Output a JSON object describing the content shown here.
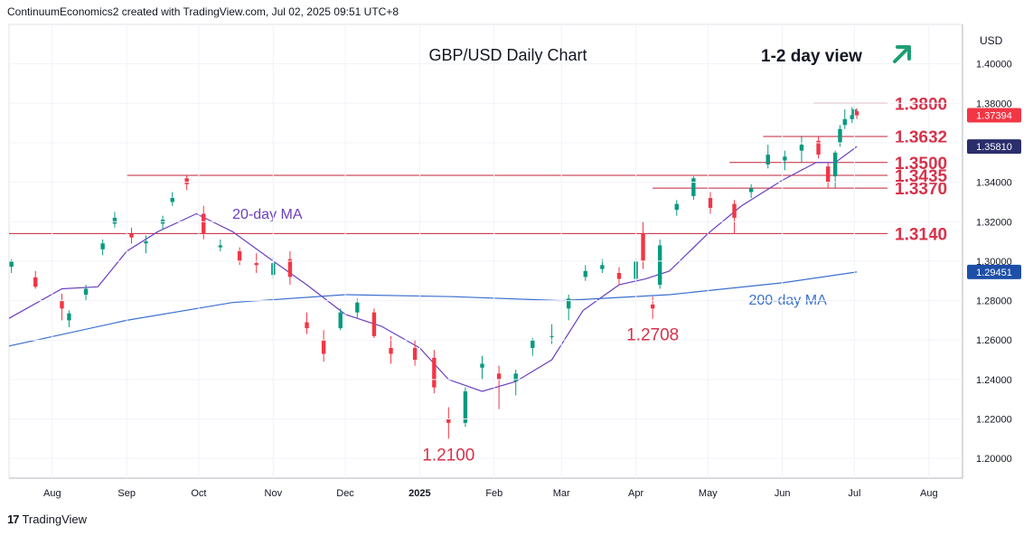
{
  "header": {
    "attribution": "ContinuumEconomics2 created with TradingView.com, Jul 02, 2025 09:51 UTC+8"
  },
  "footer": {
    "logo_text": "17",
    "brand": "TradingView"
  },
  "colors": {
    "up": "#089981",
    "down": "#f23645",
    "ma20": "#6a3fc0",
    "ma200": "#3b6fd0",
    "level": "#c2233a",
    "annotation": "#d8324a",
    "arrow": "#1e9e73",
    "price_badge": "#f23645",
    "ma20_badge": "#2a2e6b",
    "ma200_badge": "#1e4fa8"
  },
  "chart_data": {
    "type": "candlestick",
    "title": "GBP/USD Daily Chart",
    "subtitle": "1-2 day view",
    "outlook_icon": "arrow-up-right-icon",
    "currency": "USD",
    "xlabel": "",
    "ylabel": "",
    "ylim": [
      1.19,
      1.42
    ],
    "y_ticks": [
      "1.40000",
      "1.38000",
      "1.36000",
      "1.34000",
      "1.32000",
      "1.30000",
      "1.28000",
      "1.26000",
      "1.24000",
      "1.22000",
      "1.20000"
    ],
    "x_range": [
      "2024-07-14",
      "2025-08-15"
    ],
    "x_ticks": [
      {
        "label": "Aug",
        "date": "2024-08-01"
      },
      {
        "label": "Sep",
        "date": "2024-09-01"
      },
      {
        "label": "Oct",
        "date": "2024-10-01"
      },
      {
        "label": "Nov",
        "date": "2024-11-01"
      },
      {
        "label": "Dec",
        "date": "2024-12-01"
      },
      {
        "label": "2025",
        "date": "2025-01-01"
      },
      {
        "label": "Feb",
        "date": "2025-02-01"
      },
      {
        "label": "Mar",
        "date": "2025-03-01"
      },
      {
        "label": "Apr",
        "date": "2025-04-01"
      },
      {
        "label": "May",
        "date": "2025-05-01"
      },
      {
        "label": "Jun",
        "date": "2025-06-01"
      },
      {
        "label": "Jul",
        "date": "2025-07-01"
      },
      {
        "label": "Aug",
        "date": "2025-08-01"
      }
    ],
    "price_badges": [
      {
        "value": "1.37394",
        "kind": "price"
      },
      {
        "value": "1.35810",
        "kind": "ma20"
      },
      {
        "value": "1.29451",
        "kind": "ma200"
      }
    ],
    "levels": [
      {
        "label": "1.3800",
        "value": 1.38,
        "start": "2025-06-14"
      },
      {
        "label": "1.3632",
        "value": 1.3632,
        "start": "2025-05-24"
      },
      {
        "label": "1.3500",
        "value": 1.35,
        "start": "2025-05-10"
      },
      {
        "label": "1.3435",
        "value": 1.3435,
        "start": "2024-09-01"
      },
      {
        "label": "1.3370",
        "value": 1.337,
        "start": "2025-04-08"
      },
      {
        "label": "1.3140",
        "value": 1.314,
        "start": "2024-07-14"
      }
    ],
    "annotations": [
      {
        "text": "1.2708",
        "date": "2025-04-08",
        "value": 1.2708
      },
      {
        "text": "1.2100",
        "date": "2025-01-13",
        "value": 1.21
      }
    ],
    "series": [
      {
        "name": "20-day MA",
        "points": [
          [
            "2024-07-14",
            1.271
          ],
          [
            "2024-08-05",
            1.286
          ],
          [
            "2024-08-20",
            1.287
          ],
          [
            "2024-09-01",
            1.305
          ],
          [
            "2024-09-14",
            1.315
          ],
          [
            "2024-09-30",
            1.324
          ],
          [
            "2024-10-15",
            1.315
          ],
          [
            "2024-11-01",
            1.3
          ],
          [
            "2024-11-15",
            1.288
          ],
          [
            "2024-12-01",
            1.273
          ],
          [
            "2024-12-16",
            1.267
          ],
          [
            "2025-01-01",
            1.256
          ],
          [
            "2025-01-13",
            1.24
          ],
          [
            "2025-01-27",
            1.234
          ],
          [
            "2025-02-10",
            1.239
          ],
          [
            "2025-02-25",
            1.25
          ],
          [
            "2025-03-10",
            1.275
          ],
          [
            "2025-03-25",
            1.288
          ],
          [
            "2025-04-05",
            1.291
          ],
          [
            "2025-04-15",
            1.295
          ],
          [
            "2025-05-01",
            1.314
          ],
          [
            "2025-05-15",
            1.328
          ],
          [
            "2025-06-01",
            1.341
          ],
          [
            "2025-06-15",
            1.35
          ],
          [
            "2025-06-23",
            1.35
          ],
          [
            "2025-07-02",
            1.3581
          ]
        ]
      },
      {
        "name": "200-day MA",
        "points": [
          [
            "2024-07-14",
            1.257
          ],
          [
            "2024-09-01",
            1.27
          ],
          [
            "2024-10-15",
            1.279
          ],
          [
            "2024-12-01",
            1.283
          ],
          [
            "2025-01-15",
            1.282
          ],
          [
            "2025-03-01",
            1.28
          ],
          [
            "2025-04-15",
            1.283
          ],
          [
            "2025-06-01",
            1.289
          ],
          [
            "2025-07-02",
            1.2945
          ]
        ]
      }
    ],
    "candles": [
      {
        "d": "2024-07-15",
        "o": 1.2972,
        "h": 1.301,
        "l": 1.294,
        "c": 1.2998
      },
      {
        "d": "2024-07-25",
        "o": 1.2918,
        "h": 1.295,
        "l": 1.286,
        "c": 1.287
      },
      {
        "d": "2024-08-05",
        "o": 1.28,
        "h": 1.2835,
        "l": 1.27,
        "c": 1.276
      },
      {
        "d": "2024-08-08",
        "o": 1.27,
        "h": 1.275,
        "l": 1.2665,
        "c": 1.2735
      },
      {
        "d": "2024-08-15",
        "o": 1.283,
        "h": 1.288,
        "l": 1.28,
        "c": 1.286
      },
      {
        "d": "2024-08-22",
        "o": 1.306,
        "h": 1.311,
        "l": 1.303,
        "c": 1.309
      },
      {
        "d": "2024-08-27",
        "o": 1.319,
        "h": 1.325,
        "l": 1.317,
        "c": 1.322
      },
      {
        "d": "2024-09-03",
        "o": 1.314,
        "h": 1.317,
        "l": 1.309,
        "c": 1.312
      },
      {
        "d": "2024-09-09",
        "o": 1.309,
        "h": 1.313,
        "l": 1.304,
        "c": 1.31
      },
      {
        "d": "2024-09-16",
        "o": 1.319,
        "h": 1.323,
        "l": 1.316,
        "c": 1.321
      },
      {
        "d": "2024-09-20",
        "o": 1.33,
        "h": 1.335,
        "l": 1.328,
        "c": 1.332
      },
      {
        "d": "2024-09-26",
        "o": 1.342,
        "h": 1.3434,
        "l": 1.336,
        "c": 1.339
      },
      {
        "d": "2024-10-03",
        "o": 1.324,
        "h": 1.328,
        "l": 1.311,
        "c": 1.314
      },
      {
        "d": "2024-10-10",
        "o": 1.307,
        "h": 1.311,
        "l": 1.305,
        "c": 1.308
      },
      {
        "d": "2024-10-18",
        "o": 1.305,
        "h": 1.307,
        "l": 1.298,
        "c": 1.3
      },
      {
        "d": "2024-10-25",
        "o": 1.299,
        "h": 1.304,
        "l": 1.294,
        "c": 1.298
      },
      {
        "d": "2024-11-01",
        "o": 1.293,
        "h": 1.302,
        "l": 1.291,
        "c": 1.299
      },
      {
        "d": "2024-11-08",
        "o": 1.301,
        "h": 1.305,
        "l": 1.288,
        "c": 1.292
      },
      {
        "d": "2024-11-15",
        "o": 1.269,
        "h": 1.274,
        "l": 1.263,
        "c": 1.266
      },
      {
        "d": "2024-11-22",
        "o": 1.26,
        "h": 1.265,
        "l": 1.249,
        "c": 1.253
      },
      {
        "d": "2024-11-29",
        "o": 1.266,
        "h": 1.276,
        "l": 1.265,
        "c": 1.274
      },
      {
        "d": "2024-12-06",
        "o": 1.274,
        "h": 1.281,
        "l": 1.271,
        "c": 1.279
      },
      {
        "d": "2024-12-13",
        "o": 1.274,
        "h": 1.276,
        "l": 1.261,
        "c": 1.262
      },
      {
        "d": "2024-12-20",
        "o": 1.256,
        "h": 1.262,
        "l": 1.248,
        "c": 1.253
      },
      {
        "d": "2024-12-30",
        "o": 1.256,
        "h": 1.26,
        "l": 1.247,
        "c": 1.25
      },
      {
        "d": "2025-01-07",
        "o": 1.251,
        "h": 1.255,
        "l": 1.233,
        "c": 1.236
      },
      {
        "d": "2025-01-13",
        "o": 1.22,
        "h": 1.226,
        "l": 1.21,
        "c": 1.218
      },
      {
        "d": "2025-01-20",
        "o": 1.218,
        "h": 1.236,
        "l": 1.216,
        "c": 1.234
      },
      {
        "d": "2025-01-27",
        "o": 1.246,
        "h": 1.252,
        "l": 1.24,
        "c": 1.248
      },
      {
        "d": "2025-02-03",
        "o": 1.243,
        "h": 1.247,
        "l": 1.225,
        "c": 1.24
      },
      {
        "d": "2025-02-10",
        "o": 1.239,
        "h": 1.245,
        "l": 1.232,
        "c": 1.243
      },
      {
        "d": "2025-02-17",
        "o": 1.256,
        "h": 1.261,
        "l": 1.252,
        "c": 1.26
      },
      {
        "d": "2025-02-25",
        "o": 1.262,
        "h": 1.268,
        "l": 1.258,
        "c": 1.262
      },
      {
        "d": "2025-03-04",
        "o": 1.276,
        "h": 1.283,
        "l": 1.27,
        "c": 1.281
      },
      {
        "d": "2025-03-11",
        "o": 1.292,
        "h": 1.298,
        "l": 1.29,
        "c": 1.295
      },
      {
        "d": "2025-03-18",
        "o": 1.296,
        "h": 1.301,
        "l": 1.294,
        "c": 1.298
      },
      {
        "d": "2025-03-25",
        "o": 1.294,
        "h": 1.297,
        "l": 1.288,
        "c": 1.291
      },
      {
        "d": "2025-04-01",
        "o": 1.291,
        "h": 1.302,
        "l": 1.288,
        "c": 1.3
      },
      {
        "d": "2025-04-04",
        "o": 1.314,
        "h": 1.32,
        "l": 1.296,
        "c": 1.3
      },
      {
        "d": "2025-04-08",
        "o": 1.278,
        "h": 1.282,
        "l": 1.2708,
        "c": 1.276
      },
      {
        "d": "2025-04-11",
        "o": 1.288,
        "h": 1.311,
        "l": 1.286,
        "c": 1.308
      },
      {
        "d": "2025-04-18",
        "o": 1.326,
        "h": 1.331,
        "l": 1.323,
        "c": 1.329
      },
      {
        "d": "2025-04-25",
        "o": 1.333,
        "h": 1.343,
        "l": 1.331,
        "c": 1.342
      },
      {
        "d": "2025-05-02",
        "o": 1.332,
        "h": 1.335,
        "l": 1.324,
        "c": 1.327
      },
      {
        "d": "2025-05-12",
        "o": 1.329,
        "h": 1.331,
        "l": 1.314,
        "c": 1.322
      },
      {
        "d": "2025-05-19",
        "o": 1.335,
        "h": 1.339,
        "l": 1.332,
        "c": 1.337
      },
      {
        "d": "2025-05-26",
        "o": 1.349,
        "h": 1.359,
        "l": 1.347,
        "c": 1.354
      },
      {
        "d": "2025-06-02",
        "o": 1.351,
        "h": 1.356,
        "l": 1.346,
        "c": 1.353
      },
      {
        "d": "2025-06-09",
        "o": 1.356,
        "h": 1.363,
        "l": 1.35,
        "c": 1.359
      },
      {
        "d": "2025-06-16",
        "o": 1.361,
        "h": 1.3632,
        "l": 1.352,
        "c": 1.354
      },
      {
        "d": "2025-06-20",
        "o": 1.348,
        "h": 1.35,
        "l": 1.337,
        "c": 1.34
      },
      {
        "d": "2025-06-23",
        "o": 1.343,
        "h": 1.356,
        "l": 1.337,
        "c": 1.355
      },
      {
        "d": "2025-06-25",
        "o": 1.36,
        "h": 1.369,
        "l": 1.358,
        "c": 1.367
      },
      {
        "d": "2025-06-27",
        "o": 1.369,
        "h": 1.377,
        "l": 1.367,
        "c": 1.372
      },
      {
        "d": "2025-06-30",
        "o": 1.372,
        "h": 1.378,
        "l": 1.37,
        "c": 1.374
      },
      {
        "d": "2025-07-01",
        "o": 1.374,
        "h": 1.379,
        "l": 1.371,
        "c": 1.377
      },
      {
        "d": "2025-07-02",
        "o": 1.376,
        "h": 1.3775,
        "l": 1.372,
        "c": 1.3739
      }
    ]
  }
}
